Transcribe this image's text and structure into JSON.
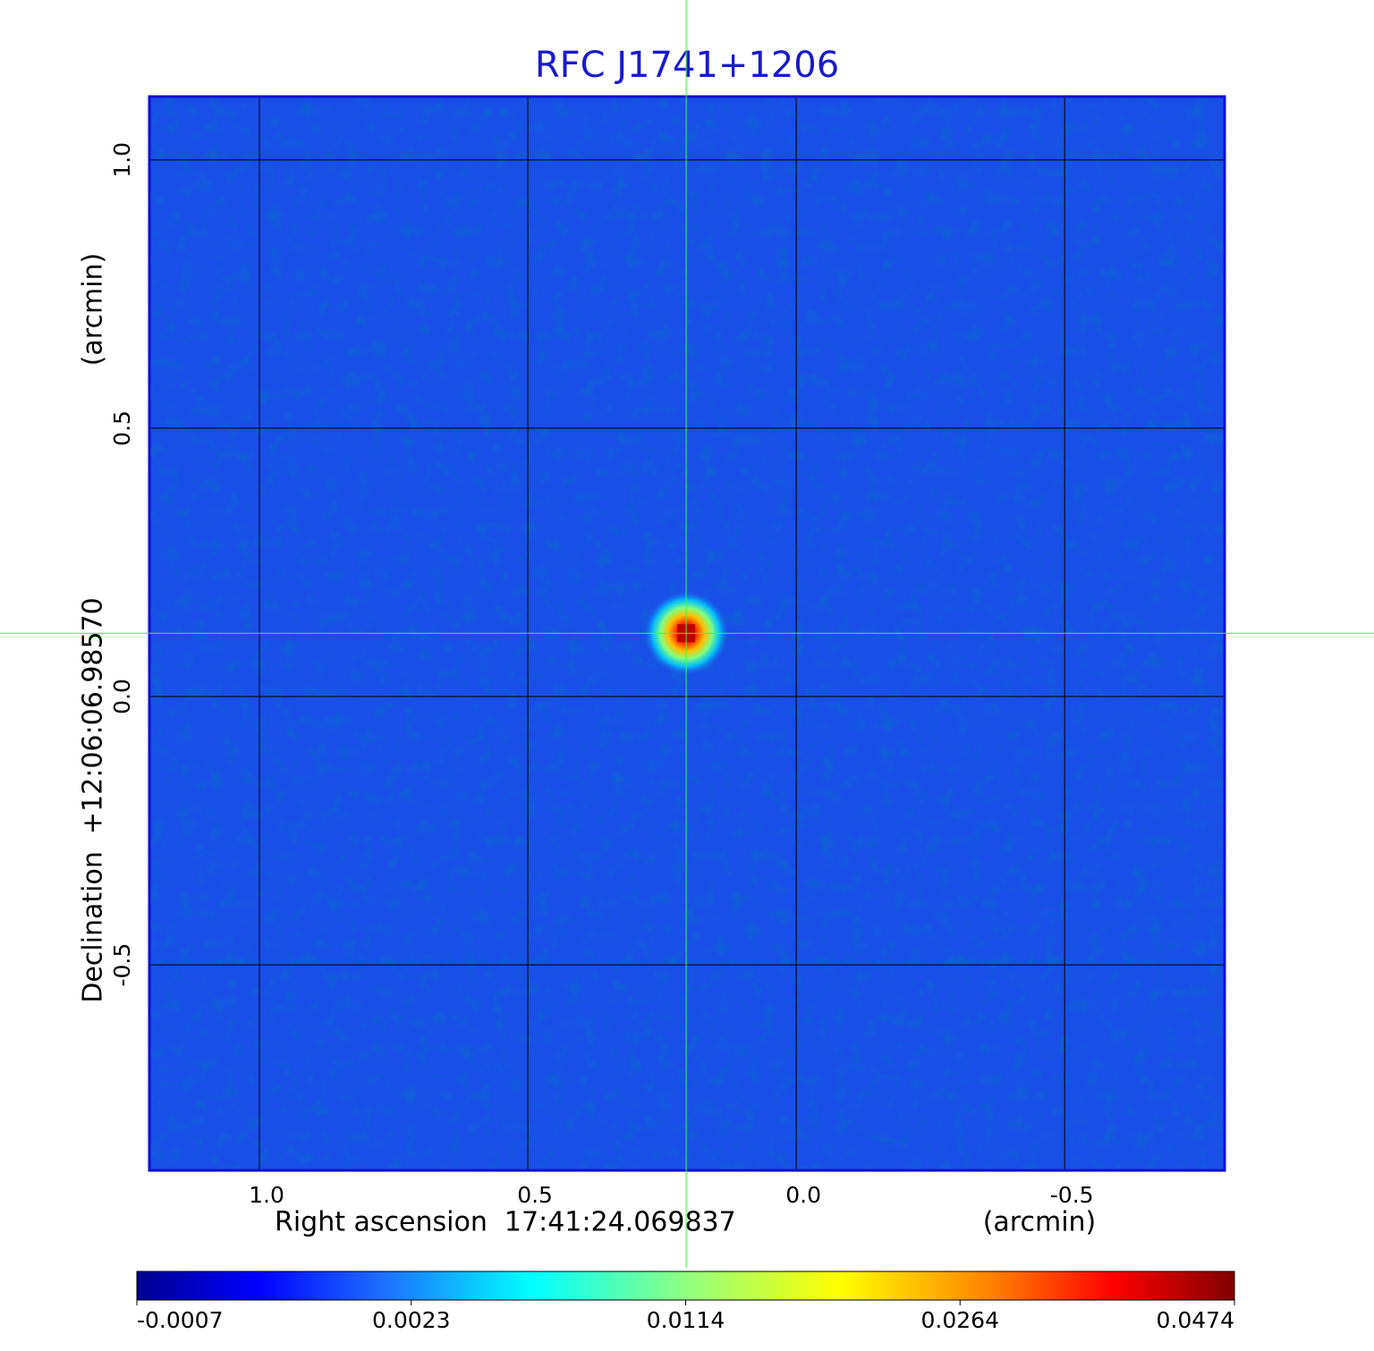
{
  "chart_data": {
    "type": "image",
    "title": "RFC J1741+1206",
    "title_color": "#1a1acc",
    "xlabel": "Right ascension  17:41:24.069837",
    "xunit": "(arcmin)",
    "ylabel": "Declination  +12:06:06.98570",
    "yunit": "(arcmin)",
    "xlim": [
      1.205,
      -0.798
    ],
    "ylim": [
      -0.883,
      1.118
    ],
    "xticks": [
      {
        "value": 1,
        "label": "1.0"
      },
      0.5,
      {
        "value": 0,
        "label": "0.0"
      },
      -0.5
    ],
    "yticks": [
      {
        "value": 1,
        "label": "1.0"
      },
      0.5,
      {
        "value": 0,
        "label": "0.0"
      },
      -0.5
    ],
    "grid": true,
    "colormap": "jet",
    "background_color": "#1a4ee8",
    "marker": {
      "x": 0.205,
      "y": 0.118,
      "color": "#33ff33"
    },
    "colorbar": {
      "ticks": [
        -0.0007,
        0.0023,
        0.0114,
        0.0264,
        0.0474
      ]
    }
  }
}
